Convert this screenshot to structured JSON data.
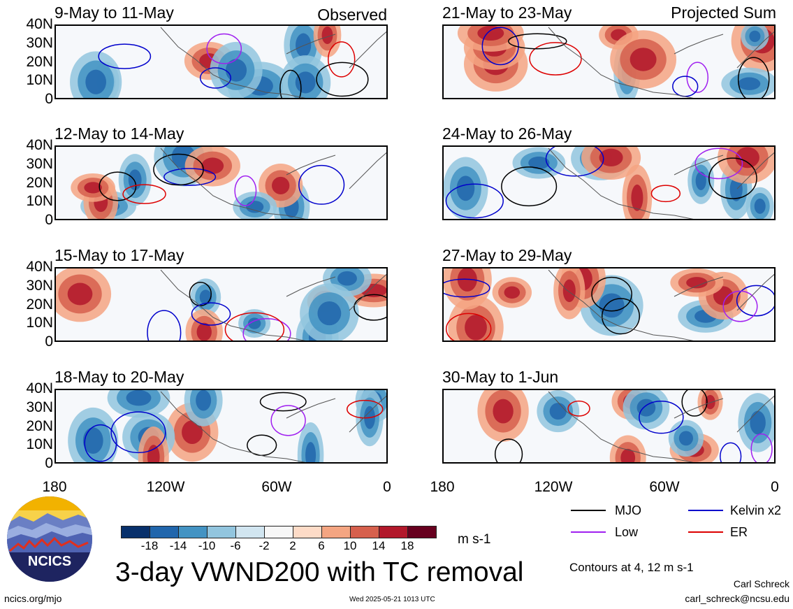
{
  "panels_left": [
    {
      "title": "9-May to 11-May",
      "tag": "Observed"
    },
    {
      "title": "12-May to 14-May",
      "tag": ""
    },
    {
      "title": "15-May to 17-May",
      "tag": ""
    },
    {
      "title": "18-May to 20-May",
      "tag": ""
    }
  ],
  "panels_right": [
    {
      "title": "21-May to 23-May",
      "tag": "Projected Sum"
    },
    {
      "title": "24-May to 26-May",
      "tag": ""
    },
    {
      "title": "27-May to 29-May",
      "tag": ""
    },
    {
      "title": "30-May to 1-Jun",
      "tag": ""
    }
  ],
  "y_ticks": [
    "40N",
    "30N",
    "20N",
    "10N",
    "0"
  ],
  "x_ticks": [
    "180",
    "120W",
    "60W",
    "0"
  ],
  "colorbar": {
    "labels": [
      "-18",
      "-14",
      "-10",
      "-6",
      "-2",
      "2",
      "6",
      "10",
      "14",
      "18"
    ],
    "colors": [
      "#08306b",
      "#2166ac",
      "#4393c3",
      "#92c5de",
      "#d1e5f0",
      "#f7f7f7",
      "#fddbc7",
      "#f4a582",
      "#d6604d",
      "#b2182b",
      "#67001f"
    ],
    "units": "m s-1"
  },
  "legend": {
    "items": [
      {
        "label": "MJO",
        "color": "#000000"
      },
      {
        "label": "Kelvin x2",
        "color": "#0000cc"
      },
      {
        "label": "Low",
        "color": "#a020f0"
      },
      {
        "label": "ER",
        "color": "#dd0000"
      }
    ],
    "contours_note": "Contours at 4, 12 m s-1"
  },
  "footer": {
    "main_title": "3-day VWND200 with TC removal",
    "website": "ncics.org/mjo",
    "timestamp": "Wed 2025-05-21 1013 UTC",
    "author": "Carl Schreck",
    "email": "carl_schreck@ncsu.edu",
    "logo_text": "NCICS"
  }
}
